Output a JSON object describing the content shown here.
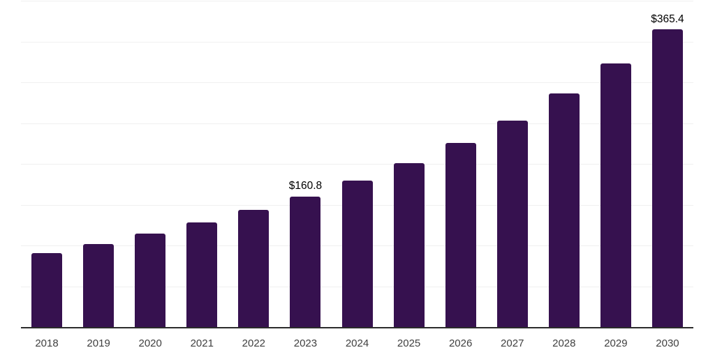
{
  "chart_data": {
    "type": "bar",
    "title": "",
    "xlabel": "",
    "ylabel": "",
    "categories": [
      "2018",
      "2019",
      "2020",
      "2021",
      "2022",
      "2023",
      "2024",
      "2025",
      "2026",
      "2027",
      "2028",
      "2029",
      "2030"
    ],
    "values": [
      91.6,
      102.9,
      115.4,
      129.0,
      144.6,
      160.8,
      180.3,
      202.0,
      226.6,
      253.6,
      287.0,
      324.0,
      365.4
    ],
    "labeled_points": [
      {
        "category": "2023",
        "label": "$160.8"
      },
      {
        "category": "2030",
        "label": "$365.4"
      }
    ],
    "ylim": [
      0,
      400
    ],
    "grid_step": 50,
    "grid": true,
    "legend": false,
    "colors": {
      "bar": "#36114F",
      "axis_line": "#2b2b2b",
      "gridline": "#f0f0f0",
      "tick_label": "#404040",
      "value_label": "#000000",
      "background": "#ffffff"
    }
  }
}
